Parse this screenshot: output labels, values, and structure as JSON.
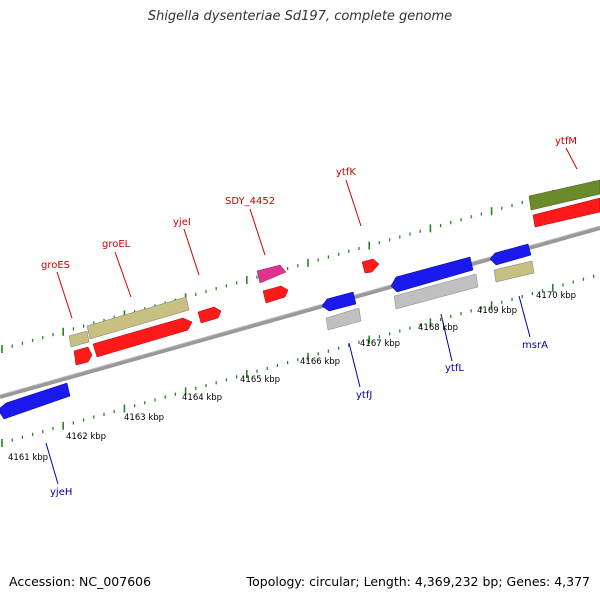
{
  "title": "Shigella dysenteriae Sd197, complete genome",
  "footer": {
    "accession": "Accession: NC_007606",
    "topology": "Topology: circular; Length: 4,369,232 bp; Genes: 4,377"
  },
  "colors": {
    "plus_label": "#cc0000",
    "minus_label": "#0000aa",
    "tick": "#228822",
    "backbone": "#888888"
  },
  "kbp_labels": [
    "4161 kbp",
    "4162 kbp",
    "4163 kbp",
    "4164 kbp",
    "4165 kbp",
    "4166 kbp",
    "4167 kbp",
    "4168 kbp",
    "4169 kbp",
    "4170 kbp"
  ],
  "genes_plus": [
    {
      "label": "groES",
      "color": "#c8c080"
    },
    {
      "label": "groEL",
      "color": "#c8c080"
    },
    {
      "label": "yjeI",
      "color": "#ff1a1a"
    },
    {
      "label": "SDY_4452",
      "color": "#e03090"
    },
    {
      "label": "ytfK",
      "color": "#ff1a1a"
    },
    {
      "label": "ytfM",
      "color": "#6b8a2a"
    }
  ],
  "genes_minus": [
    {
      "label": "yjeH",
      "color": "#1a1aee"
    },
    {
      "label": "ytfJ",
      "color": "#c0c0c0"
    },
    {
      "label": "ytfL",
      "color": "#c0c0c0"
    },
    {
      "label": "msrA",
      "color": "#c8c080"
    }
  ]
}
